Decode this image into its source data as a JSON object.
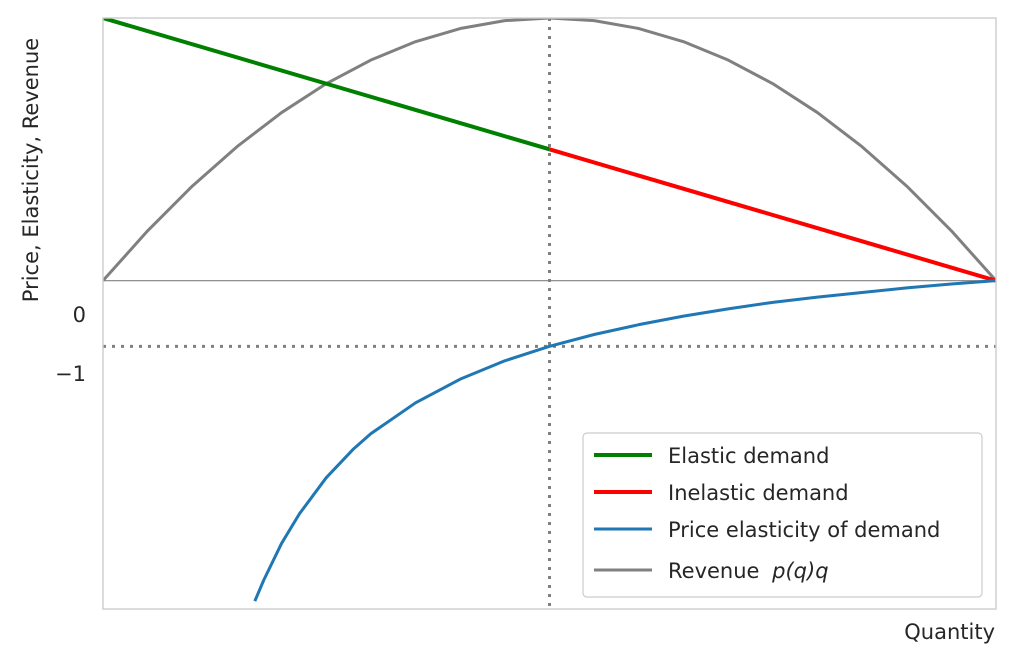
{
  "chart_data": {
    "type": "line",
    "title": "",
    "xlabel": "Quantity",
    "ylabel": "Price, Elasticity, Revenue",
    "xlim": [
      0,
      1
    ],
    "ylim": [
      -5,
      4
    ],
    "grid": false,
    "legend_position": "lower-right",
    "y_ticks": [
      {
        "value": 0,
        "label": "0"
      },
      {
        "value": -1,
        "label": "−1"
      }
    ],
    "reference_lines": [
      {
        "orientation": "horizontal",
        "value": 0,
        "style": "solid",
        "color": "#808080"
      },
      {
        "orientation": "horizontal",
        "value": -1,
        "style": "dotted",
        "color": "#808080"
      },
      {
        "orientation": "vertical",
        "value": 0.5,
        "style": "dotted",
        "color": "#808080"
      }
    ],
    "series": [
      {
        "name": "Elastic demand",
        "color": "#008000",
        "x": [
          0,
          0.5
        ],
        "y": [
          4,
          2
        ]
      },
      {
        "name": "Inelastic demand",
        "color": "#ff0000",
        "x": [
          0.5,
          1
        ],
        "y": [
          2,
          0
        ]
      },
      {
        "name": "Price elasticity of demand",
        "color": "#1f77b4",
        "x": [
          0.17,
          0.18,
          0.2,
          0.22,
          0.25,
          0.28,
          0.3,
          0.35,
          0.4,
          0.45,
          0.5,
          0.55,
          0.6,
          0.65,
          0.7,
          0.75,
          0.8,
          0.85,
          0.9,
          0.95,
          1.0
        ],
        "y": [
          -4.88,
          -4.56,
          -4.0,
          -3.55,
          -3.0,
          -2.57,
          -2.33,
          -1.86,
          -1.5,
          -1.22,
          -1.0,
          -0.82,
          -0.67,
          -0.54,
          -0.43,
          -0.33,
          -0.25,
          -0.18,
          -0.11,
          -0.05,
          0
        ]
      },
      {
        "name": "Revenue",
        "legend_label": "Revenue",
        "legend_math": "p(q)q",
        "color": "#808080",
        "x": [
          0,
          0.05,
          0.1,
          0.15,
          0.2,
          0.25,
          0.3,
          0.35,
          0.4,
          0.45,
          0.5,
          0.55,
          0.6,
          0.65,
          0.7,
          0.75,
          0.8,
          0.85,
          0.9,
          0.95,
          1.0
        ],
        "y": [
          0,
          0.76,
          1.44,
          2.04,
          2.56,
          3.0,
          3.36,
          3.64,
          3.84,
          3.96,
          4.0,
          3.96,
          3.84,
          3.64,
          3.36,
          3.0,
          2.56,
          2.04,
          1.44,
          0.76,
          0
        ]
      }
    ]
  }
}
